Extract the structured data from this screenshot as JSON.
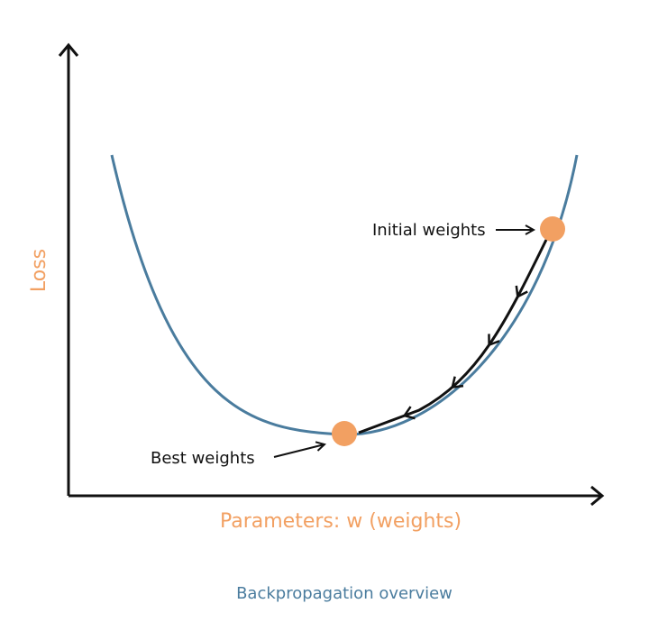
{
  "diagram": {
    "title": "",
    "x_axis_label": "Parameters: w (weights)",
    "y_axis_label": "Loss",
    "caption": "Backpropagation overview",
    "annotations": {
      "initial": "Initial weights",
      "best": "Best weights"
    },
    "colors": {
      "curve": "#4a7c9e",
      "point": "#f2a062",
      "axis_label": "#f2a062",
      "caption": "#4a7c9e",
      "axes": "#111111"
    },
    "descent_steps": 5
  }
}
